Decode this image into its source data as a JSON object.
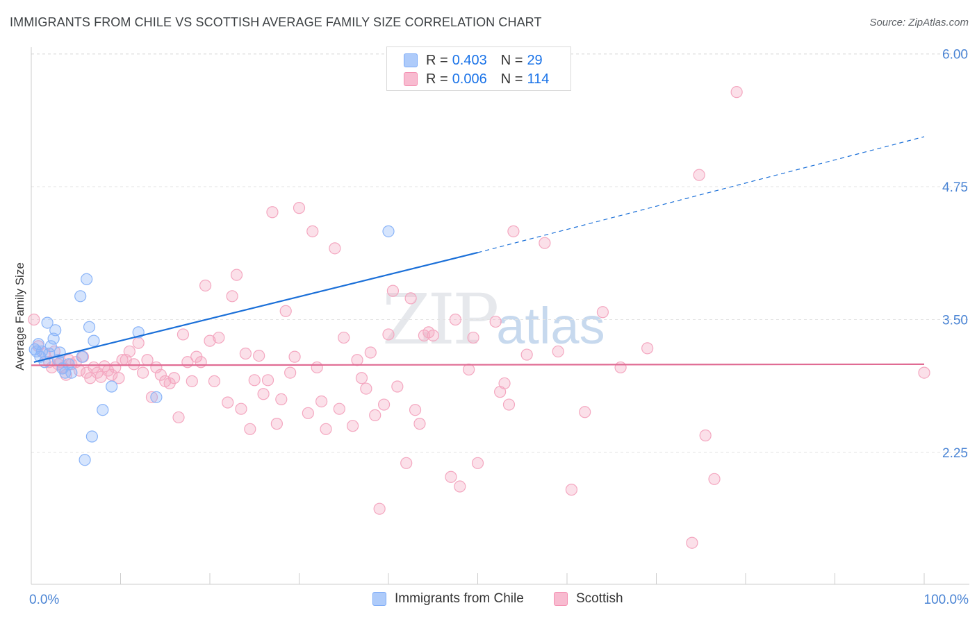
{
  "title": "IMMIGRANTS FROM CHILE VS SCOTTISH AVERAGE FAMILY SIZE CORRELATION CHART",
  "source": "Source: ZipAtlas.com",
  "watermark": {
    "zip": "ZIP",
    "atlas": "atlas"
  },
  "legend_top": [
    {
      "swatch_color": "#aecbfa",
      "r_label": "R =",
      "r_value": "0.403",
      "n_label": "N =",
      "n_value": "29"
    },
    {
      "swatch_color": "#f8bbd0",
      "r_label": "R =",
      "r_value": "0.006",
      "n_label": "N =",
      "n_value": "114"
    }
  ],
  "legend_bottom": [
    {
      "label": "Immigrants from Chile",
      "color": "#aecbfa"
    },
    {
      "label": "Scottish",
      "color": "#f8bbd0"
    }
  ],
  "chart_data": {
    "type": "scatter",
    "title": "IMMIGRANTS FROM CHILE VS SCOTTISH AVERAGE FAMILY SIZE CORRELATION CHART",
    "xlabel": "",
    "ylabel": "Average Family Size",
    "xlim": [
      0,
      100
    ],
    "ylim": [
      1.0,
      6.15
    ],
    "x_tick_labels": [
      "0.0%",
      "100.0%"
    ],
    "y_ticks": [
      2.25,
      3.5,
      4.75,
      6.0
    ],
    "y_tick_labels": [
      "2.25",
      "3.50",
      "4.75",
      "6.00"
    ],
    "grid": "horizontal dashed",
    "series": [
      {
        "name": "Immigrants from Chile",
        "color": "#8ab4f8",
        "line_color": "#1a6fd8",
        "trend": {
          "x0": 0.3,
          "y0": 3.1,
          "x1": 50,
          "y1": 4.13,
          "x_ext": 100,
          "y_ext": 5.22
        },
        "points": [
          [
            0.4,
            3.22
          ],
          [
            0.6,
            3.2
          ],
          [
            0.8,
            3.27
          ],
          [
            1.0,
            3.15
          ],
          [
            1.2,
            3.2
          ],
          [
            1.5,
            3.1
          ],
          [
            1.8,
            3.47
          ],
          [
            2.0,
            3.18
          ],
          [
            2.2,
            3.25
          ],
          [
            2.5,
            3.32
          ],
          [
            2.7,
            3.4
          ],
          [
            3.0,
            3.12
          ],
          [
            3.2,
            3.19
          ],
          [
            3.5,
            3.04
          ],
          [
            3.8,
            3.0
          ],
          [
            4.2,
            3.08
          ],
          [
            4.5,
            3.0
          ],
          [
            5.5,
            3.72
          ],
          [
            5.7,
            3.15
          ],
          [
            6.0,
            2.18
          ],
          [
            6.2,
            3.88
          ],
          [
            6.5,
            3.43
          ],
          [
            6.8,
            2.4
          ],
          [
            7.0,
            3.3
          ],
          [
            8.0,
            2.65
          ],
          [
            9.0,
            2.87
          ],
          [
            12.0,
            3.38
          ],
          [
            14.0,
            2.77
          ],
          [
            40.0,
            4.33
          ]
        ]
      },
      {
        "name": "Scottish",
        "color": "#f4a7c0",
        "line_color": "#e06b93",
        "trend": {
          "x0": 0,
          "y0": 3.07,
          "x1": 100,
          "y1": 3.08
        },
        "points": [
          [
            0.3,
            3.5
          ],
          [
            0.8,
            3.25
          ],
          [
            1.5,
            3.18
          ],
          [
            2.0,
            3.1
          ],
          [
            2.3,
            3.05
          ],
          [
            2.6,
            3.2
          ],
          [
            3.0,
            3.08
          ],
          [
            3.3,
            3.1
          ],
          [
            3.6,
            3.05
          ],
          [
            3.9,
            2.98
          ],
          [
            4.2,
            3.12
          ],
          [
            4.5,
            3.08
          ],
          [
            5.0,
            3.1
          ],
          [
            5.4,
            3.02
          ],
          [
            5.8,
            3.15
          ],
          [
            6.2,
            3.0
          ],
          [
            6.6,
            2.95
          ],
          [
            7.0,
            3.05
          ],
          [
            7.4,
            3.0
          ],
          [
            7.8,
            2.96
          ],
          [
            8.2,
            3.06
          ],
          [
            8.6,
            3.02
          ],
          [
            9.0,
            2.98
          ],
          [
            9.4,
            3.05
          ],
          [
            9.8,
            2.95
          ],
          [
            10.2,
            3.12
          ],
          [
            10.6,
            3.12
          ],
          [
            11.0,
            3.2
          ],
          [
            11.5,
            3.08
          ],
          [
            12.0,
            3.28
          ],
          [
            12.5,
            3.0
          ],
          [
            13.0,
            3.12
          ],
          [
            13.5,
            2.77
          ],
          [
            14.0,
            3.05
          ],
          [
            14.5,
            2.98
          ],
          [
            15.0,
            2.92
          ],
          [
            15.5,
            2.9
          ],
          [
            16.0,
            2.95
          ],
          [
            16.5,
            2.58
          ],
          [
            17.0,
            3.36
          ],
          [
            17.5,
            3.1
          ],
          [
            18.0,
            2.92
          ],
          [
            18.5,
            3.15
          ],
          [
            19.0,
            3.1
          ],
          [
            19.5,
            3.82
          ],
          [
            20.0,
            3.3
          ],
          [
            20.5,
            2.92
          ],
          [
            21.0,
            3.33
          ],
          [
            22.0,
            2.72
          ],
          [
            22.5,
            3.72
          ],
          [
            23.0,
            3.92
          ],
          [
            23.5,
            2.66
          ],
          [
            24.0,
            3.18
          ],
          [
            24.5,
            2.47
          ],
          [
            25.0,
            2.93
          ],
          [
            25.5,
            3.16
          ],
          [
            26.0,
            2.8
          ],
          [
            26.5,
            2.93
          ],
          [
            27.0,
            4.51
          ],
          [
            27.5,
            2.52
          ],
          [
            28.0,
            2.75
          ],
          [
            28.5,
            3.58
          ],
          [
            29.0,
            3.0
          ],
          [
            29.5,
            3.15
          ],
          [
            30.0,
            4.55
          ],
          [
            31.0,
            2.62
          ],
          [
            31.5,
            4.33
          ],
          [
            32.0,
            3.05
          ],
          [
            32.5,
            2.73
          ],
          [
            33.0,
            2.47
          ],
          [
            34.0,
            4.17
          ],
          [
            34.5,
            2.66
          ],
          [
            35.0,
            3.33
          ],
          [
            36.0,
            2.5
          ],
          [
            36.5,
            3.12
          ],
          [
            37.0,
            2.95
          ],
          [
            37.5,
            2.85
          ],
          [
            38.0,
            3.19
          ],
          [
            38.5,
            2.6
          ],
          [
            39.0,
            1.72
          ],
          [
            39.5,
            2.7
          ],
          [
            40.0,
            3.36
          ],
          [
            40.5,
            3.77
          ],
          [
            41.0,
            2.87
          ],
          [
            42.0,
            2.15
          ],
          [
            42.5,
            3.7
          ],
          [
            43.0,
            2.65
          ],
          [
            43.5,
            2.52
          ],
          [
            44.0,
            3.35
          ],
          [
            44.5,
            3.38
          ],
          [
            45.0,
            3.35
          ],
          [
            47.0,
            2.02
          ],
          [
            47.5,
            3.5
          ],
          [
            48.0,
            1.93
          ],
          [
            49.0,
            3.03
          ],
          [
            49.5,
            3.33
          ],
          [
            50.0,
            2.15
          ],
          [
            52.0,
            3.48
          ],
          [
            52.5,
            2.82
          ],
          [
            53.0,
            2.9
          ],
          [
            53.5,
            2.7
          ],
          [
            54.0,
            4.33
          ],
          [
            55.5,
            3.17
          ],
          [
            57.5,
            4.22
          ],
          [
            59.0,
            3.2
          ],
          [
            60.5,
            1.9
          ],
          [
            62.0,
            2.63
          ],
          [
            64.0,
            3.57
          ],
          [
            66.0,
            3.05
          ],
          [
            69.0,
            3.23
          ],
          [
            74.0,
            1.4
          ],
          [
            74.8,
            4.86
          ],
          [
            75.5,
            2.41
          ],
          [
            76.5,
            2.0
          ],
          [
            79.0,
            5.64
          ],
          [
            100.0,
            3.0
          ]
        ]
      }
    ]
  }
}
